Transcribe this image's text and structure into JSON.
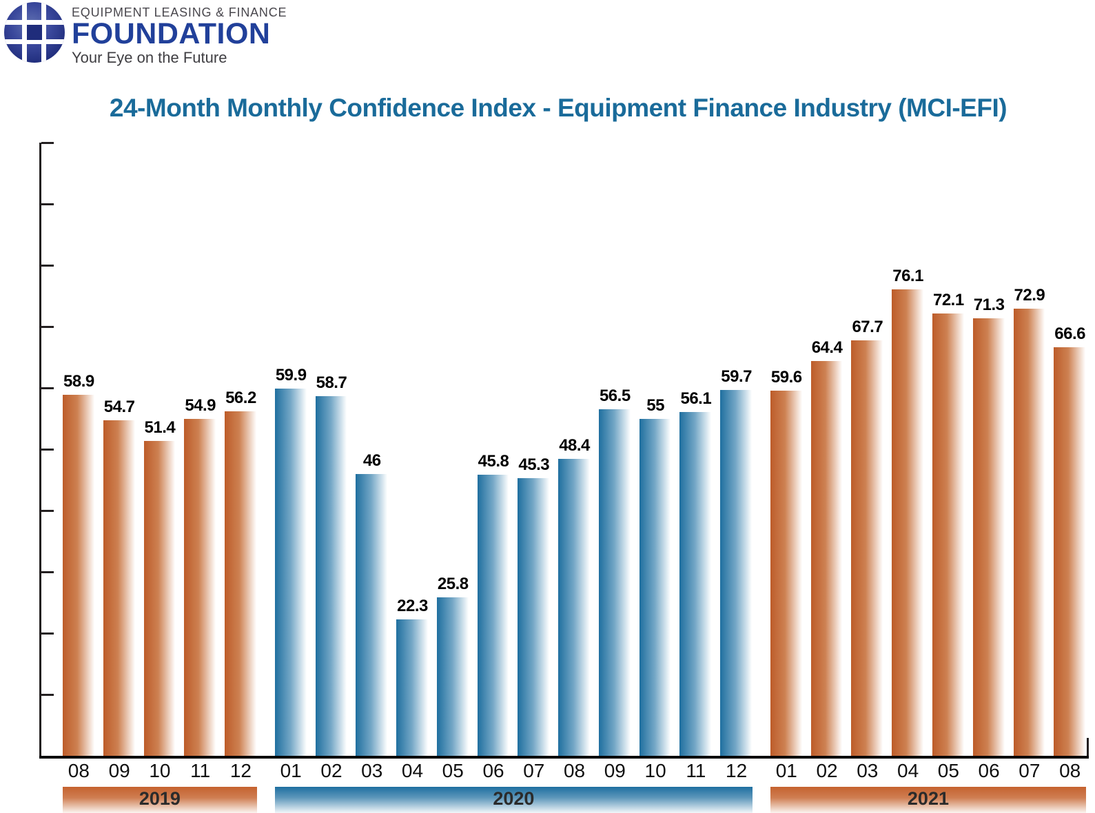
{
  "logo": {
    "line1": "EQUIPMENT LEASING & FINANCE",
    "name": "FOUNDATION",
    "tagline": "Your Eye on the Future"
  },
  "title": "24-Month Monthly Confidence Index - Equipment Finance Industry (MCI-EFI)",
  "colors": {
    "title_blue": "#1a6b9a",
    "orange_dark": "#bd5c29",
    "blue_dark": "#1f6f9f",
    "logo_navy": "#1f2c7b",
    "logo_blue": "#21409a",
    "axis_black": "#231f20"
  },
  "chart_data": {
    "type": "bar",
    "title": "24-Month Monthly Confidence Index - Equipment Finance Industry (MCI-EFI)",
    "ylim": [
      0,
      100
    ],
    "yticks": [
      0,
      10,
      20,
      30,
      40,
      50,
      60,
      70,
      80,
      90,
      100
    ],
    "grid": false,
    "legend": "none",
    "xlabel": "",
    "ylabel": "",
    "groups": [
      {
        "year": "2019",
        "theme": "orange",
        "categories": [
          "08",
          "09",
          "10",
          "11",
          "12"
        ],
        "values": [
          58.9,
          54.7,
          51.4,
          54.9,
          56.2
        ]
      },
      {
        "year": "2020",
        "theme": "blue",
        "categories": [
          "01",
          "02",
          "03",
          "04",
          "05",
          "06",
          "07",
          "08",
          "09",
          "10",
          "11",
          "12"
        ],
        "values": [
          59.9,
          58.7,
          46,
          22.3,
          25.8,
          45.8,
          45.3,
          48.4,
          56.5,
          55,
          56.1,
          59.7
        ]
      },
      {
        "year": "2021",
        "theme": "orange",
        "categories": [
          "01",
          "02",
          "03",
          "04",
          "05",
          "06",
          "07",
          "08"
        ],
        "values": [
          59.6,
          64.4,
          67.7,
          76.1,
          72.1,
          71.3,
          72.9,
          66.6
        ]
      }
    ]
  }
}
